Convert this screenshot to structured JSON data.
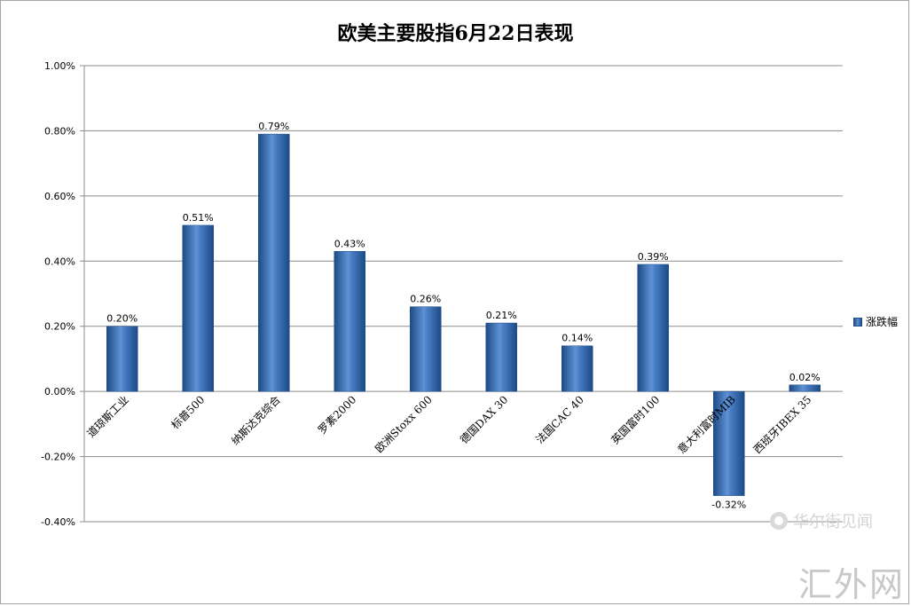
{
  "chart_data": {
    "type": "bar",
    "title": "欧美主要股指6月22日表现",
    "categories": [
      "道琼斯工业",
      "标普500",
      "纳斯达克综合",
      "罗素2000",
      "欧洲Stoxx 600",
      "德国DAX 30",
      "法国CAC 40",
      "英国富时100",
      "意大利富时MIB",
      "西班牙IBEX 35"
    ],
    "series": [
      {
        "name": "涨跌幅",
        "values": [
          0.2,
          0.51,
          0.79,
          0.43,
          0.26,
          0.21,
          0.14,
          0.39,
          -0.32,
          0.02
        ]
      }
    ],
    "data_labels": [
      "0.20%",
      "0.51%",
      "0.79%",
      "0.43%",
      "0.26%",
      "0.21%",
      "0.14%",
      "0.39%",
      "-0.32%",
      "0.02%"
    ],
    "ylim": [
      -0.4,
      1.0
    ],
    "yticks": [
      -0.4,
      -0.2,
      0.0,
      0.2,
      0.4,
      0.6,
      0.8,
      1.0
    ],
    "ytick_labels": [
      "-0.40%",
      "-0.20%",
      "0.00%",
      "0.20%",
      "0.40%",
      "0.60%",
      "0.80%",
      "1.00%"
    ],
    "grid": true,
    "legend_position": "right",
    "bar_color": "#3a6fb7"
  },
  "watermarks": [
    "华尔街见闻",
    "汇外网"
  ]
}
